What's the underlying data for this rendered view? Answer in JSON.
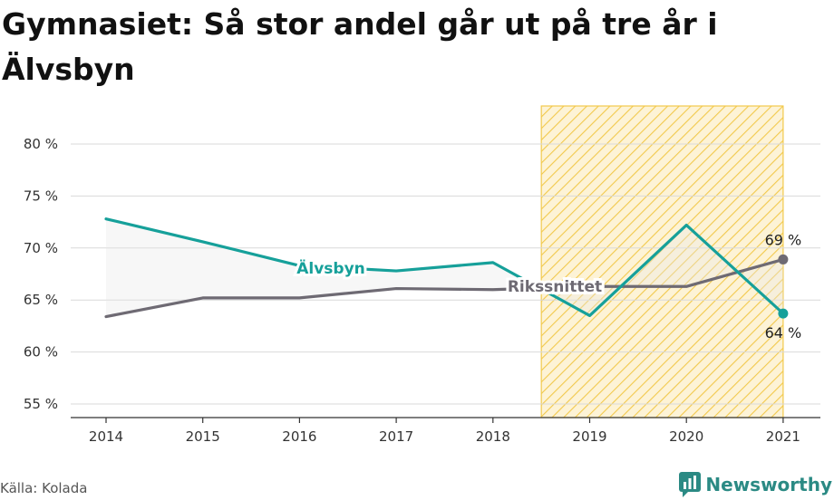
{
  "title": "Gymnasiet: Så stor andel går ut på tre år i Älvsbyn",
  "source": "Källa: Kolada",
  "brand": "Newsworthy",
  "colors": {
    "primary": "#16a09a",
    "secondary": "#6e6a73",
    "highlight": "#f2c94c",
    "brand": "#2b8a84"
  },
  "chart_data": {
    "type": "line",
    "categories": [
      "2014",
      "2015",
      "2016",
      "2017",
      "2018",
      "2019",
      "2020",
      "2021"
    ],
    "ylim": [
      55,
      83
    ],
    "yticks": [
      55,
      60,
      65,
      70,
      75,
      80
    ],
    "ytick_labels": [
      "55 %",
      "60 %",
      "65 %",
      "70 %",
      "75 %",
      "80 %"
    ],
    "highlight_range": [
      "2019",
      "2021"
    ],
    "grid": true,
    "series": [
      {
        "name": "Älvsbyn",
        "key": "alvsbyn",
        "values": [
          72.8,
          70.6,
          68.3,
          67.8,
          68.6,
          63.5,
          72.2,
          63.7
        ],
        "end_label": "64 %"
      },
      {
        "name": "Rikssnittet",
        "key": "riks",
        "values": [
          63.4,
          65.2,
          65.2,
          66.1,
          66.0,
          66.3,
          66.3,
          68.9
        ],
        "end_label": "69 %"
      }
    ]
  }
}
